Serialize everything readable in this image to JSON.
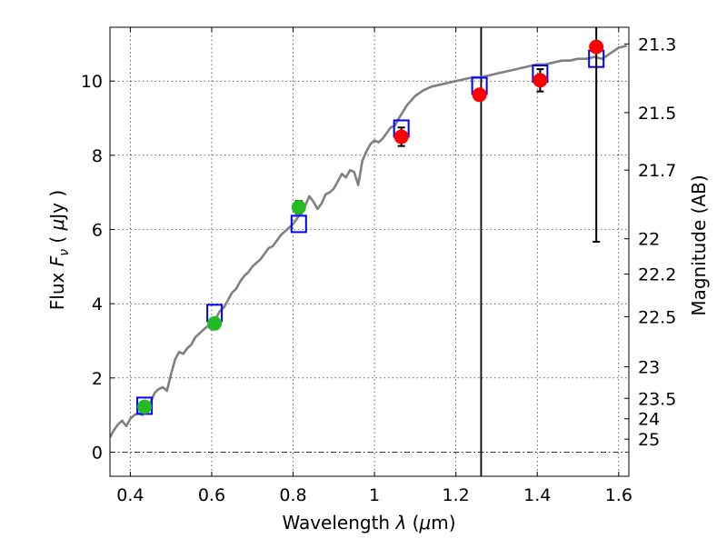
{
  "chart_data": {
    "type": "scatter",
    "title": "",
    "xlabel_text": "Wavelength  ",
    "xlabel_symbol": "λ",
    "xlabel_unit_open": " (",
    "xlabel_unit_mu": "μ",
    "xlabel_unit_rest": "m)",
    "ylabel_text": "Flux  ",
    "ylabel_symbol": "F",
    "ylabel_symbol_sub": "ν",
    "ylabel_unit_open": "  (  ",
    "ylabel_unit_mu": "μ",
    "ylabel_unit_rest": "Jy )",
    "y2label": "Magnitude (AB)",
    "xlim": [
      0.35,
      1.625
    ],
    "ylim": [
      -0.65,
      11.45
    ],
    "grid": true,
    "x_ticks": [
      0.4,
      0.6,
      0.8,
      1.0,
      1.2,
      1.4,
      1.6
    ],
    "x_tick_labels": [
      "0.4",
      "0.6",
      "0.8",
      "1",
      "1.2",
      "1.4",
      "1.6"
    ],
    "y_ticks": [
      0,
      2,
      4,
      6,
      8,
      10
    ],
    "y_tick_labels": [
      "0",
      "2",
      "4",
      "6",
      "8",
      "10"
    ],
    "y2_ticks": [
      {
        "label": "21.3",
        "flux": 11.0
      },
      {
        "label": "21.5",
        "flux": 9.15
      },
      {
        "label": "21.7",
        "flux": 7.6
      },
      {
        "label": "22",
        "flux": 5.75
      },
      {
        "label": "22.2",
        "flux": 4.8
      },
      {
        "label": "22.5",
        "flux": 3.65
      },
      {
        "label": "23",
        "flux": 2.3
      },
      {
        "label": "23.5",
        "flux": 1.45
      },
      {
        "label": "24",
        "flux": 0.9
      },
      {
        "label": "25",
        "flux": 0.35
      }
    ],
    "vertical_line_x": 1.262,
    "zero_line_y": 0,
    "colors": {
      "sed_model": "#808080",
      "model_box": "#0000ff",
      "optical_points": "#22bb22",
      "nir_points": "#ff0000",
      "error_bar": "#000000"
    },
    "series": [
      {
        "marker": "line",
        "x": [
          0.35,
          0.36,
          0.37,
          0.38,
          0.39,
          0.4,
          0.41,
          0.42,
          0.43,
          0.44,
          0.45,
          0.46,
          0.47,
          0.48,
          0.49,
          0.5,
          0.51,
          0.52,
          0.53,
          0.54,
          0.55,
          0.56,
          0.57,
          0.58,
          0.59,
          0.6,
          0.61,
          0.62,
          0.63,
          0.64,
          0.65,
          0.66,
          0.67,
          0.68,
          0.69,
          0.7,
          0.71,
          0.72,
          0.73,
          0.74,
          0.75,
          0.76,
          0.77,
          0.78,
          0.79,
          0.8,
          0.81,
          0.82,
          0.83,
          0.84,
          0.85,
          0.86,
          0.87,
          0.88,
          0.89,
          0.9,
          0.91,
          0.92,
          0.93,
          0.94,
          0.95,
          0.96,
          0.97,
          0.98,
          0.99,
          1.0,
          1.01,
          1.02,
          1.03,
          1.04,
          1.05,
          1.06,
          1.08,
          1.1,
          1.12,
          1.14,
          1.16,
          1.18,
          1.2,
          1.22,
          1.24,
          1.26,
          1.28,
          1.3,
          1.32,
          1.34,
          1.36,
          1.38,
          1.4,
          1.42,
          1.44,
          1.46,
          1.48,
          1.5,
          1.52,
          1.54,
          1.56,
          1.58,
          1.6,
          1.62
        ],
        "y": [
          0.4,
          0.6,
          0.75,
          0.85,
          0.7,
          0.9,
          1.0,
          1.05,
          1.0,
          1.2,
          1.35,
          1.6,
          1.7,
          1.75,
          1.65,
          2.1,
          2.5,
          2.7,
          2.65,
          2.8,
          2.9,
          3.1,
          3.2,
          3.3,
          3.4,
          3.3,
          3.6,
          3.8,
          3.9,
          4.1,
          4.3,
          4.4,
          4.6,
          4.75,
          4.85,
          5.0,
          5.1,
          5.2,
          5.35,
          5.5,
          5.55,
          5.7,
          5.85,
          5.95,
          6.05,
          6.15,
          6.3,
          6.5,
          6.65,
          6.9,
          6.75,
          6.55,
          6.7,
          6.95,
          7.0,
          7.1,
          7.3,
          7.5,
          7.4,
          7.6,
          7.55,
          7.2,
          7.85,
          8.1,
          8.3,
          8.4,
          8.35,
          8.45,
          8.6,
          8.75,
          8.8,
          9.0,
          9.35,
          9.6,
          9.75,
          9.85,
          9.9,
          9.95,
          10.0,
          10.05,
          10.1,
          10.1,
          10.15,
          10.2,
          10.25,
          10.3,
          10.35,
          10.4,
          10.45,
          10.45,
          10.5,
          10.55,
          10.55,
          10.6,
          10.6,
          10.65,
          10.6,
          10.75,
          10.9,
          10.95
        ]
      },
      {
        "marker": "open-square",
        "x": [
          0.435,
          0.607,
          0.814,
          1.066,
          1.258,
          1.407,
          1.545
        ],
        "y": [
          1.25,
          3.75,
          6.15,
          8.72,
          9.87,
          10.2,
          10.6
        ]
      },
      {
        "marker": "circle-green",
        "x": [
          0.435,
          0.607,
          0.814
        ],
        "y": [
          1.22,
          3.47,
          6.6
        ],
        "yerr": [
          0.12,
          0.12,
          0.17
        ]
      },
      {
        "marker": "circle-red",
        "x": [
          1.066,
          1.258,
          1.407,
          1.545
        ],
        "y": [
          8.5,
          9.63,
          10.02,
          10.92
        ],
        "yerr": [
          0.25,
          0,
          0.3,
          5.25
        ]
      }
    ]
  }
}
